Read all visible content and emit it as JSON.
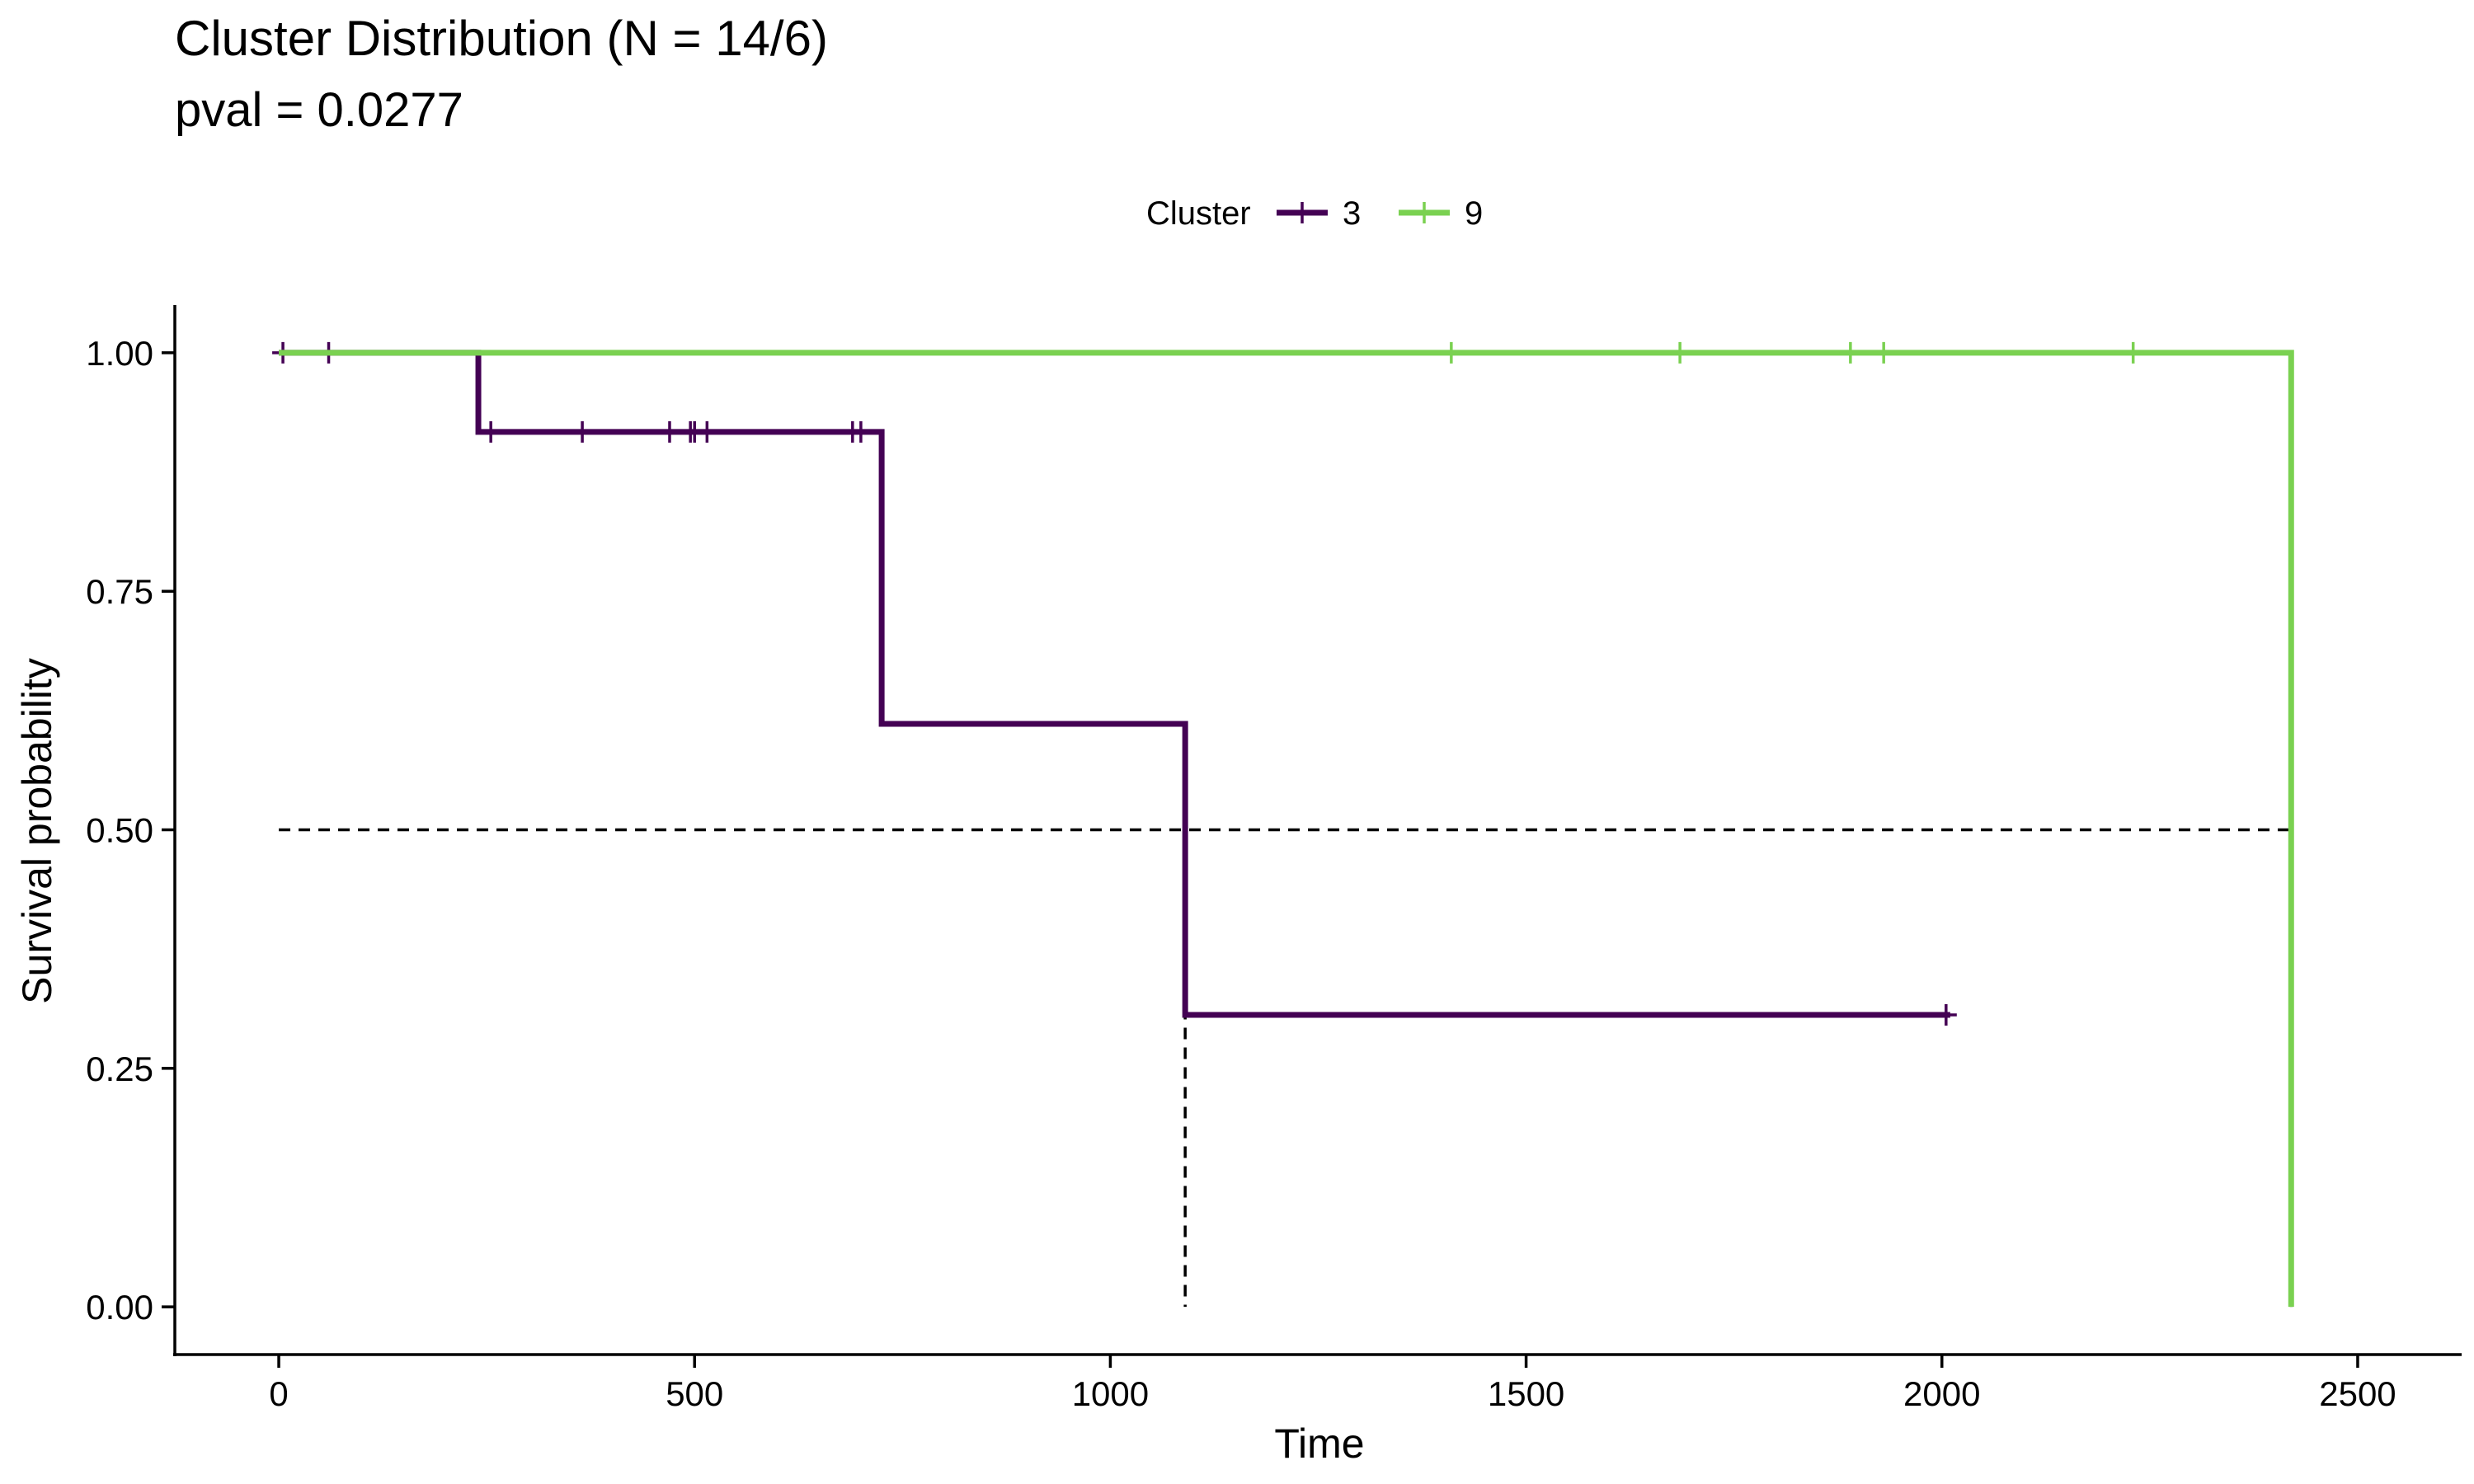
{
  "chart_data": {
    "type": "line",
    "subtype": "kaplan-meier survival curve",
    "title": "Cluster Distribution (N = 14/6)",
    "subtitle": "pval = 0.0277",
    "xlabel": "Time",
    "ylabel": "Survival probability",
    "xlim": [
      -125,
      2625
    ],
    "ylim": [
      -0.05,
      1.05
    ],
    "xticks": [
      0,
      500,
      1000,
      1500,
      2000,
      2500
    ],
    "xtick_labels": [
      "0",
      "500",
      "1000",
      "1500",
      "2000",
      "2500"
    ],
    "yticks": [
      0,
      0.25,
      0.5,
      0.75,
      1.0
    ],
    "ytick_labels": [
      "0.00",
      "0.25",
      "0.50",
      "0.75",
      "1.00"
    ],
    "grid": false,
    "legend": {
      "title": "Cluster",
      "placement": "top",
      "entries": [
        "3",
        "9"
      ]
    },
    "series": [
      {
        "name": "3",
        "color": "#440154",
        "steps": [
          [
            0,
            1.0
          ],
          [
            240,
            0.917
          ],
          [
            725,
            0.611
          ],
          [
            1090,
            0.306
          ],
          [
            2010,
            0.306
          ]
        ],
        "censored": [
          [
            5,
            1.0
          ],
          [
            60,
            1.0
          ],
          [
            255,
            0.917
          ],
          [
            365,
            0.917
          ],
          [
            470,
            0.917
          ],
          [
            495,
            0.917
          ],
          [
            500,
            0.917
          ],
          [
            515,
            0.917
          ],
          [
            690,
            0.917
          ],
          [
            700,
            0.917
          ],
          [
            2005,
            0.306
          ]
        ]
      },
      {
        "name": "9",
        "color": "#7AD151",
        "steps": [
          [
            0,
            1.0
          ],
          [
            2420,
            0.0
          ]
        ],
        "censored": [
          [
            1410,
            1.0
          ],
          [
            1685,
            1.0
          ],
          [
            1890,
            1.0
          ],
          [
            1930,
            1.0
          ],
          [
            2230,
            1.0
          ]
        ]
      }
    ],
    "median_reference": {
      "y": 0.5,
      "x_values": [
        1090,
        2420
      ],
      "style": "dashed",
      "color": "#000000"
    }
  }
}
